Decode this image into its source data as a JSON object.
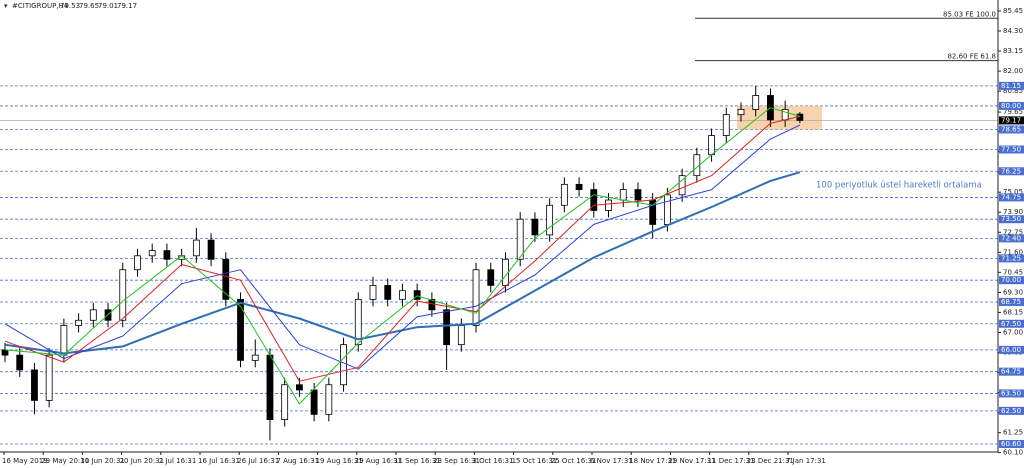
{
  "chart_data": {
    "type": "candlestick",
    "symbol": "#CITIGROUP,H4",
    "ohlc": [
      79.53,
      79.65,
      79.01,
      79.17
    ],
    "x_labels": [
      "16 May 2019",
      "29 May 20:31",
      "10 Jun 20:31",
      "20 Jun 20:31",
      "2 Jul 16:31",
      "16 Jul 16:31",
      "26 Jul 16:31",
      "7 Aug 16:31",
      "19 Aug 16:31",
      "29 Aug 16:31",
      "11 Sep 16:31",
      "23 Sep 16:31",
      "3 Oct 16:31",
      "15 Oct 16:31",
      "25 Oct 16:31",
      "6 Nov 17:31",
      "18 Nov 17:31",
      "29 Nov 17:31",
      "11 Dec 17:31",
      "23 Dec 21:31",
      "7 Jan 17:31"
    ],
    "xlim": [
      -0.34,
      67.46
    ],
    "ylim": [
      60.14,
      86.08
    ],
    "yticks": [
      85.45,
      {
        "value": 84.3,
        "label": "84.30"
      },
      83.15,
      {
        "value": 82.0,
        "label": "82.00"
      },
      80.85,
      79.65,
      78.55,
      {
        "value": 77.4,
        "label": "77.40"
      },
      {
        "value": 76.2,
        "label": "76.20"
      },
      75.05,
      {
        "value": 73.9,
        "label": "73.90"
      },
      72.75,
      {
        "value": 71.6,
        "label": "71.60"
      },
      70.45,
      {
        "value": 69.3,
        "label": "69.30"
      },
      68.15,
      {
        "value": 67.0,
        "label": "67.00"
      },
      65.85,
      {
        "value": 64.7,
        "label": "64.70"
      },
      63.55,
      {
        "value": 62.4,
        "label": "62.40"
      },
      61.25,
      {
        "value": 60.1,
        "label": "60.10"
      }
    ],
    "levels": [
      81.15,
      {
        "value": 80.0,
        "label": "80.00"
      },
      78.65,
      {
        "value": 77.5,
        "label": "77.50"
      },
      76.25,
      74.75,
      {
        "value": 73.5,
        "label": "73.50"
      },
      {
        "value": 72.4,
        "label": "72.40"
      },
      71.25,
      {
        "value": 70.0,
        "label": "70.00"
      },
      68.75,
      {
        "value": 67.5,
        "label": "67.50"
      },
      {
        "value": 66.0,
        "label": "66.00"
      },
      64.75,
      {
        "value": 63.5,
        "label": "63.50"
      },
      {
        "value": 62.5,
        "label": "62.50"
      },
      {
        "value": 60.6,
        "label": "60.60"
      }
    ],
    "level_color": "#4a6fd0",
    "fibo": [
      {
        "value": 85.03,
        "label": "85.03 FE 100.0"
      },
      {
        "value": 82.6,
        "label": "82.60 FE 61.8"
      }
    ],
    "current_price": 79.17,
    "zone": [
      78.65,
      80.0
    ],
    "zone_color": "#f6c48f",
    "annotation": "100 periyotluk üstel hareketli ortalama",
    "open": [
      66.0,
      65.7,
      64.85,
      63.1,
      65.7,
      67.4,
      67.7,
      68.3,
      67.7,
      70.6,
      71.4,
      71.7,
      71.2,
      71.4,
      72.3,
      71.2,
      68.9,
      65.4,
      65.7,
      62.0,
      64.0,
      63.7,
      62.3,
      64.0,
      66.3,
      68.9,
      69.7,
      68.9,
      69.4,
      68.9,
      68.3,
      66.3,
      67.4,
      70.6,
      69.7,
      71.2,
      73.5,
      72.6,
      74.3,
      75.5,
      75.2,
      74.0,
      74.6,
      75.2,
      74.6,
      73.2,
      74.9,
      76.0,
      77.2,
      78.3,
      79.5,
      79.8,
      80.6,
      79.2,
      79.53
    ],
    "high": [
      66.4,
      66.1,
      65.25,
      66.1,
      67.8,
      68.1,
      68.7,
      68.7,
      71.0,
      71.8,
      72.1,
      72.1,
      71.8,
      73.0,
      72.7,
      71.6,
      69.3,
      66.6,
      66.1,
      64.4,
      64.4,
      64.1,
      64.4,
      66.7,
      69.3,
      70.2,
      70.1,
      69.8,
      69.8,
      69.3,
      68.7,
      67.8,
      71.0,
      71.0,
      71.6,
      73.9,
      73.9,
      74.7,
      75.9,
      75.9,
      75.6,
      75.0,
      75.6,
      75.6,
      75.0,
      75.3,
      76.4,
      77.6,
      78.7,
      79.9,
      80.2,
      81.15,
      81.0,
      80.3,
      79.65
    ],
    "low": [
      65.3,
      64.45,
      62.3,
      62.7,
      65.3,
      67.0,
      67.3,
      67.3,
      67.3,
      70.2,
      71.0,
      70.8,
      70.8,
      71.0,
      70.8,
      68.5,
      65.0,
      65.0,
      60.8,
      61.6,
      63.3,
      61.9,
      61.9,
      63.6,
      65.9,
      68.5,
      68.5,
      68.5,
      68.5,
      67.9,
      64.85,
      65.9,
      67.0,
      69.3,
      69.3,
      70.8,
      72.2,
      72.2,
      73.9,
      74.8,
      73.6,
      73.6,
      74.2,
      74.2,
      72.4,
      72.8,
      74.5,
      75.6,
      76.8,
      77.9,
      79.1,
      79.4,
      78.8,
      78.8,
      79.01
    ],
    "close": [
      65.7,
      64.85,
      63.1,
      65.7,
      67.4,
      67.7,
      68.3,
      67.7,
      70.6,
      71.4,
      71.7,
      71.2,
      71.4,
      72.3,
      71.2,
      68.9,
      65.4,
      65.7,
      62.0,
      64.0,
      63.7,
      62.3,
      64.0,
      66.3,
      68.9,
      69.7,
      68.9,
      69.4,
      68.9,
      68.3,
      66.3,
      67.4,
      70.6,
      69.7,
      71.2,
      73.5,
      72.6,
      74.3,
      75.5,
      75.2,
      74.0,
      74.6,
      75.2,
      74.6,
      73.2,
      74.9,
      76.0,
      77.2,
      78.3,
      79.5,
      79.8,
      80.6,
      79.2,
      79.8,
      79.17
    ],
    "series": [
      {
        "color": "#2f6db5",
        "width": 2,
        "x": [
          0,
          4,
          8,
          12,
          16,
          20,
          24,
          28,
          32,
          36,
          40,
          44,
          48,
          52,
          54
        ],
        "values": [
          66.3,
          65.8,
          66.2,
          67.5,
          68.7,
          67.8,
          66.6,
          67.3,
          67.5,
          69.4,
          71.3,
          72.8,
          74.2,
          75.7,
          76.2
        ]
      },
      {
        "color": "#2f3fd8",
        "width": 1,
        "x": [
          0,
          4,
          8,
          12,
          16,
          20,
          24,
          28,
          32,
          36,
          40,
          44,
          48,
          52,
          54
        ],
        "values": [
          67.5,
          65.5,
          66.8,
          69.8,
          70.6,
          66.3,
          64.9,
          67.9,
          68.5,
          70.3,
          73.2,
          74.3,
          75.2,
          78.1,
          78.9
        ]
      },
      {
        "color": "#e02020",
        "width": 1,
        "x": [
          0,
          4,
          8,
          12,
          16,
          20,
          24,
          28,
          32,
          36,
          40,
          44,
          48,
          52,
          54
        ],
        "values": [
          66.5,
          65.3,
          67.8,
          70.9,
          70.0,
          64.2,
          65.0,
          68.8,
          68.2,
          71.1,
          74.3,
          74.6,
          76.0,
          79.0,
          79.4
        ]
      },
      {
        "color": "#1fc21f",
        "width": 1,
        "x": [
          0,
          4,
          8,
          12,
          16,
          20,
          24,
          28,
          32,
          36,
          40,
          44,
          48,
          52,
          54
        ],
        "values": [
          66.0,
          65.7,
          68.8,
          71.4,
          68.5,
          62.9,
          66.4,
          69.1,
          68.1,
          72.4,
          74.9,
          74.3,
          77.2,
          79.9,
          79.4
        ]
      }
    ]
  }
}
